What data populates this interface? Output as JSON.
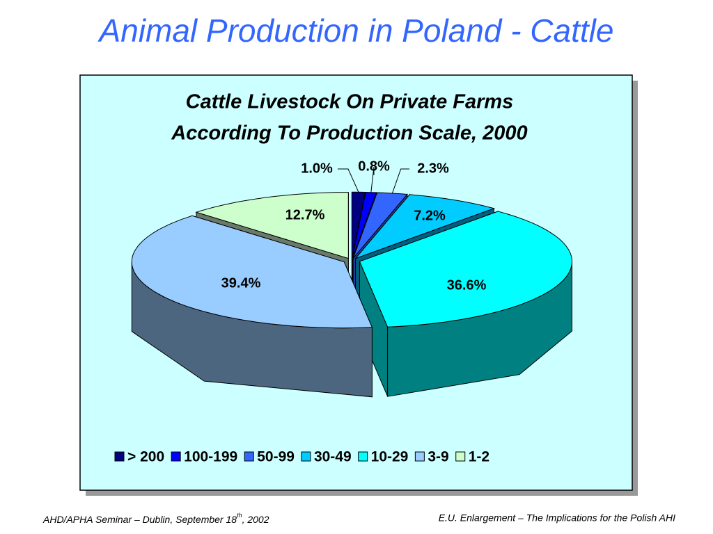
{
  "slide_title": "Animal Production in Poland - Cattle",
  "chart_data": {
    "type": "pie3d",
    "title": [
      "Cattle Livestock On Private Farms",
      "According To Production Scale, 2000"
    ],
    "categories": [
      "> 200",
      "100-199",
      "50-99",
      "30-49",
      "10-29",
      "3-9",
      "1-2"
    ],
    "values": [
      1.0,
      0.8,
      2.3,
      7.2,
      36.6,
      39.4,
      12.7
    ],
    "value_labels": [
      "1.0%",
      "0.8%",
      "2.3%",
      "7.2%",
      "36.6%",
      "39.4%",
      "12.7%"
    ],
    "colors": [
      "#000080",
      "#0000ff",
      "#3366ff",
      "#00ccff",
      "#00ffff",
      "#99ccff",
      "#ccffcc"
    ],
    "side_colors": [
      "#000050",
      "#0000a0",
      "#2040a0",
      "#006080",
      "#008080",
      "#4d6680",
      "#6a7a6a"
    ],
    "legend": "bottom"
  },
  "footer": {
    "left": [
      "AHD/APHA Seminar – Dublin, September 18",
      "th",
      ", 2002"
    ],
    "right": "E.U. Enlargement – The Implications for the Polish AHI"
  }
}
